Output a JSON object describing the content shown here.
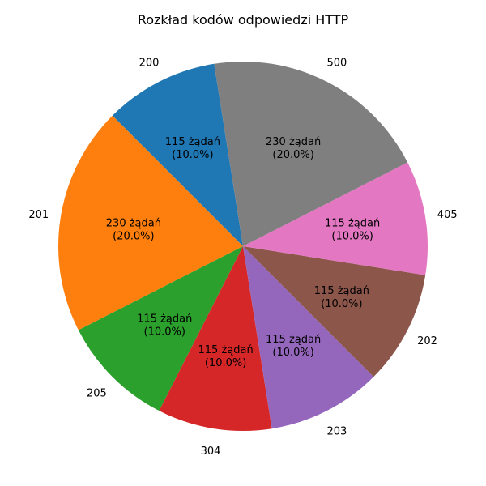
{
  "chart_data": {
    "type": "pie",
    "title": "Rozkład kodów odpowiedzi HTTP",
    "start_angle_deg": 99,
    "direction": "counterclockwise",
    "slices": [
      {
        "label": "200",
        "value": 115,
        "percent": "10.0%",
        "count_text": "115 żądań",
        "color": "#1f77b4"
      },
      {
        "label": "201",
        "value": 230,
        "percent": "20.0%",
        "count_text": "230 żądań",
        "color": "#ff7f0e"
      },
      {
        "label": "205",
        "value": 115,
        "percent": "10.0%",
        "count_text": "115 żądań",
        "color": "#2ca02c"
      },
      {
        "label": "304",
        "value": 115,
        "percent": "10.0%",
        "count_text": "115 żądań",
        "color": "#d62728"
      },
      {
        "label": "203",
        "value": 115,
        "percent": "10.0%",
        "count_text": "115 żądań",
        "color": "#9467bd"
      },
      {
        "label": "202",
        "value": 115,
        "percent": "10.0%",
        "count_text": "115 żądań",
        "color": "#8c564b"
      },
      {
        "label": "405",
        "value": 115,
        "percent": "10.0%",
        "count_text": "115 żądań",
        "color": "#e377c2"
      },
      {
        "label": "500",
        "value": 230,
        "percent": "20.0%",
        "count_text": "230 żądań",
        "color": "#7f7f7f"
      }
    ]
  }
}
